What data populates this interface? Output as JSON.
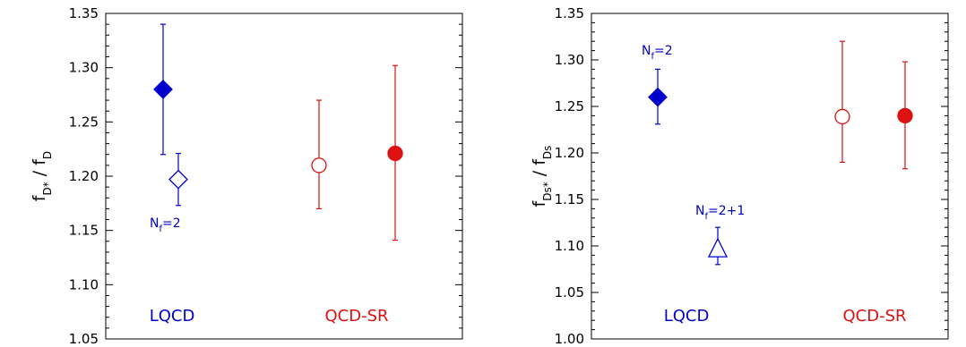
{
  "chart_data": [
    {
      "type": "scatter",
      "ylim": [
        1.05,
        1.35
      ],
      "y_ticks": [
        "1.05",
        "1.10",
        "1.15",
        "1.20",
        "1.25",
        "1.30",
        "1.35"
      ],
      "ylabel": {
        "f1": "f",
        "sub1": "D*",
        "sep": " / ",
        "f2": "f",
        "sub2": "D"
      },
      "group_labels": [
        {
          "text": "LQCD",
          "color": "#0000cc"
        },
        {
          "text": "QCD-SR",
          "color": "#dd1111"
        }
      ],
      "points": [
        {
          "marker": "diamond",
          "filled": true,
          "color": "#0000cc",
          "y": 1.28,
          "err_low": 1.22,
          "err_high": 1.34
        },
        {
          "marker": "diamond",
          "filled": false,
          "color": "#0000cc",
          "y": 1.197,
          "err_low": 1.173,
          "err_high": 1.221
        },
        {
          "marker": "circle",
          "filled": false,
          "color": "#dd1111",
          "y": 1.21,
          "err_low": 1.17,
          "err_high": 1.27
        },
        {
          "marker": "circle",
          "filled": true,
          "color": "#dd1111",
          "y": 1.221,
          "err_low": 1.141,
          "err_high": 1.302
        }
      ],
      "annotations": [
        {
          "main": "N",
          "sub": "f",
          "rest": "=2",
          "color": "#0000cc"
        }
      ]
    },
    {
      "type": "scatter",
      "ylim": [
        1.0,
        1.35
      ],
      "y_ticks": [
        "1.00",
        "1.05",
        "1.10",
        "1.15",
        "1.20",
        "1.25",
        "1.30",
        "1.35"
      ],
      "ylabel": {
        "f1": "f",
        "sub1": "Ds*",
        "sep": " / ",
        "f2": "f",
        "sub2": "Ds"
      },
      "group_labels": [
        {
          "text": "LQCD",
          "color": "#0000cc"
        },
        {
          "text": "QCD-SR",
          "color": "#dd1111"
        }
      ],
      "points": [
        {
          "marker": "diamond",
          "filled": true,
          "color": "#0000cc",
          "y": 1.26,
          "err_low": 1.231,
          "err_high": 1.29
        },
        {
          "marker": "triangle",
          "filled": false,
          "color": "#0000cc",
          "y": 1.097,
          "err_low": 1.08,
          "err_high": 1.12
        },
        {
          "marker": "circle",
          "filled": false,
          "color": "#dd1111",
          "y": 1.239,
          "err_low": 1.19,
          "err_high": 1.32
        },
        {
          "marker": "circle",
          "filled": true,
          "color": "#dd1111",
          "y": 1.24,
          "err_low": 1.183,
          "err_high": 1.298
        }
      ],
      "annotations": [
        {
          "main": "N",
          "sub": "f",
          "rest": "=2",
          "color": "#0000cc"
        },
        {
          "main": "N",
          "sub": "f",
          "rest": "=2+1",
          "color": "#0000cc"
        }
      ]
    }
  ]
}
